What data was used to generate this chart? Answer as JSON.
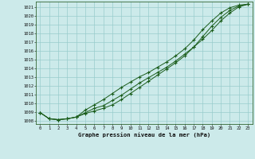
{
  "title": "Graphe pression niveau de la mer (hPa)",
  "bg_color": "#cceaea",
  "grid_color": "#99cccc",
  "line_color": "#1a5c1a",
  "y_ticks": [
    1008,
    1009,
    1010,
    1011,
    1012,
    1013,
    1014,
    1015,
    1016,
    1017,
    1018,
    1019,
    1020,
    1021
  ],
  "x_ticks": [
    0,
    1,
    2,
    3,
    4,
    5,
    6,
    7,
    8,
    9,
    10,
    11,
    12,
    13,
    14,
    15,
    16,
    17,
    18,
    19,
    20,
    21,
    22,
    23
  ],
  "ylim": [
    1007.6,
    1021.6
  ],
  "xlim": [
    -0.5,
    23.5
  ],
  "line1_y": [
    1008.9,
    1008.2,
    1008.1,
    1008.2,
    1008.4,
    1008.9,
    1009.4,
    1009.7,
    1010.3,
    1010.9,
    1011.6,
    1012.3,
    1012.9,
    1013.5,
    1014.1,
    1014.8,
    1015.6,
    1016.4,
    1017.3,
    1018.3,
    1019.4,
    1020.3,
    1021.0,
    1021.3
  ],
  "line2_y": [
    1008.9,
    1008.2,
    1008.1,
    1008.2,
    1008.4,
    1009.2,
    1009.8,
    1010.4,
    1011.1,
    1011.8,
    1012.4,
    1013.0,
    1013.5,
    1014.1,
    1014.7,
    1015.4,
    1016.2,
    1017.2,
    1018.4,
    1019.4,
    1020.3,
    1020.9,
    1021.2,
    1021.3
  ],
  "line3_y": [
    1008.9,
    1008.2,
    1008.1,
    1008.2,
    1008.4,
    1008.8,
    1009.1,
    1009.4,
    1009.8,
    1010.4,
    1011.1,
    1011.8,
    1012.5,
    1013.2,
    1013.9,
    1014.6,
    1015.4,
    1016.4,
    1017.6,
    1018.8,
    1019.8,
    1020.6,
    1021.1,
    1021.3
  ]
}
